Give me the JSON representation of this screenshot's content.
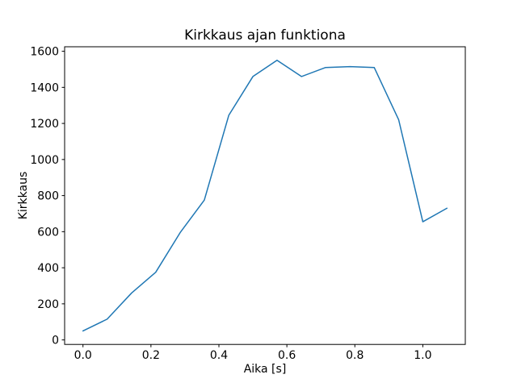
{
  "chart_data": {
    "type": "line",
    "title": "Kirkkaus ajan funktiona",
    "xlabel": "Aika [s]",
    "ylabel": "Kirkkaus",
    "x": [
      0.0,
      0.071,
      0.143,
      0.214,
      0.286,
      0.357,
      0.429,
      0.5,
      0.571,
      0.643,
      0.714,
      0.786,
      0.857,
      0.929,
      1.0,
      1.071
    ],
    "y": [
      50,
      115,
      260,
      375,
      595,
      775,
      1245,
      1460,
      1550,
      1460,
      1510,
      1515,
      1510,
      1220,
      655,
      730
    ],
    "xlim": [
      -0.054,
      1.125
    ],
    "ylim": [
      -25,
      1625
    ],
    "xticks": [
      0.0,
      0.2,
      0.4,
      0.6,
      0.8,
      1.0
    ],
    "xtick_labels": [
      "0.0",
      "0.2",
      "0.4",
      "0.6",
      "0.8",
      "1.0"
    ],
    "yticks": [
      0,
      200,
      400,
      600,
      800,
      1000,
      1200,
      1400,
      1600
    ],
    "ytick_labels": [
      "0",
      "200",
      "400",
      "600",
      "800",
      "1000",
      "1200",
      "1400",
      "1600"
    ],
    "line_color": "#1f77b4",
    "line_width": 1.5,
    "spine_color": "#000000",
    "background_color": "#ffffff",
    "grid": false,
    "legend": "none"
  }
}
